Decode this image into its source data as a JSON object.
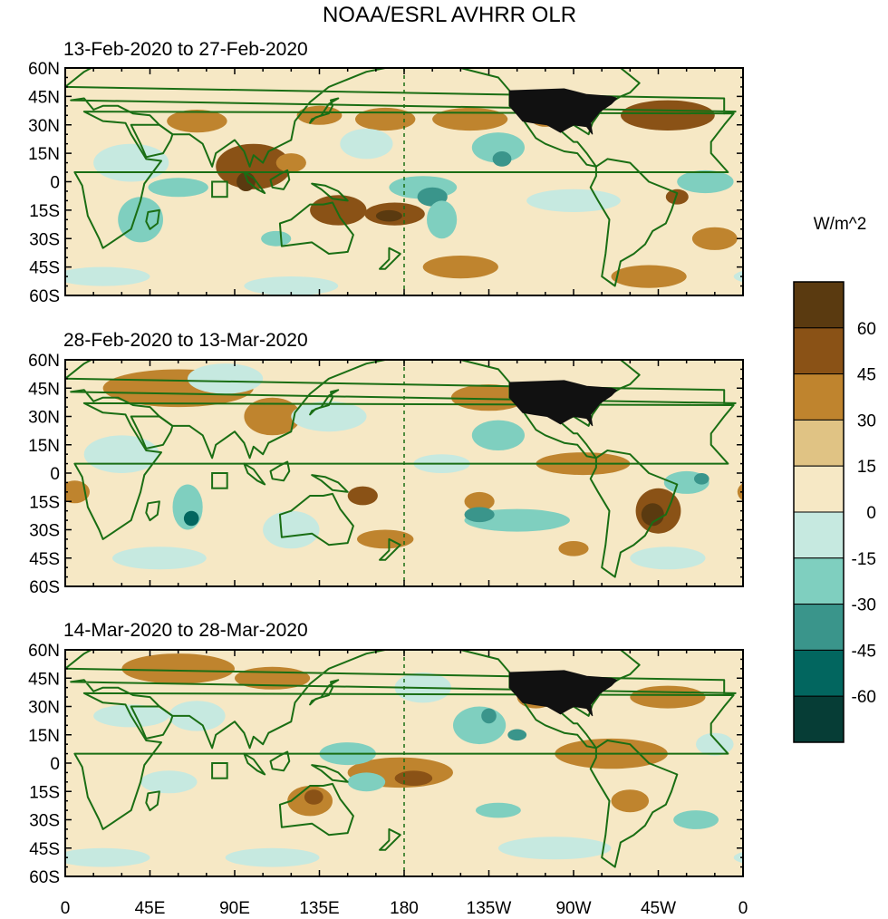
{
  "title": "NOAA/ESRL AVHRR OLR",
  "colorbar": {
    "title": "W/m^2",
    "labels": [
      "60",
      "45",
      "30",
      "15",
      "0",
      "-15",
      "-30",
      "-45",
      "-60"
    ],
    "colors": [
      "#5a3a10",
      "#8a5216",
      "#bf842e",
      "#e0c384",
      "#f6e8c5",
      "#c6e9e0",
      "#7fcfbf",
      "#3a958b",
      "#02665f",
      "#063d36"
    ],
    "color_names": [
      "> 60",
      "45 to 60",
      "30 to 45",
      "15 to 30",
      "0 to 15",
      "-15 to 0",
      "-30 to -15",
      "-45 to -30",
      "-60 to -45",
      "< -60"
    ]
  },
  "axes": {
    "lat_labels": [
      "60N",
      "45N",
      "30N",
      "15N",
      "0",
      "15S",
      "30S",
      "45S",
      "60S"
    ],
    "lon_labels": [
      "0",
      "45E",
      "90E",
      "135E",
      "180",
      "135W",
      "90W",
      "45W",
      "0"
    ],
    "lat_range": [
      -60,
      60
    ],
    "lon_range": [
      0,
      360
    ],
    "dateline_lon": 180
  },
  "panels": [
    {
      "title": "13-Feb-2020 to 27-Feb-2020",
      "anomalies": [
        {
          "lon": 320,
          "lat": 35,
          "rx": 25,
          "ry": 8,
          "level": 3
        },
        {
          "lon": 170,
          "lat": 33,
          "rx": 16,
          "ry": 6,
          "level": 2
        },
        {
          "lon": 215,
          "lat": 33,
          "rx": 20,
          "ry": 6,
          "level": 2
        },
        {
          "lon": 255,
          "lat": 34,
          "rx": 8,
          "ry": 5,
          "level": 2
        },
        {
          "lon": 70,
          "lat": 32,
          "rx": 16,
          "ry": 6,
          "level": 2
        },
        {
          "lon": 135,
          "lat": 35,
          "rx": 12,
          "ry": 5,
          "level": 2
        },
        {
          "lon": 100,
          "lat": 8,
          "rx": 20,
          "ry": 12,
          "level": 3
        },
        {
          "lon": 96,
          "lat": 0,
          "rx": 5,
          "ry": 5,
          "level": 4
        },
        {
          "lon": 120,
          "lat": 10,
          "rx": 8,
          "ry": 5,
          "level": 2
        },
        {
          "lon": 145,
          "lat": -15,
          "rx": 15,
          "ry": 8,
          "level": 3
        },
        {
          "lon": 175,
          "lat": -17,
          "rx": 16,
          "ry": 6,
          "level": 3
        },
        {
          "lon": 172,
          "lat": -18,
          "rx": 7,
          "ry": 3,
          "level": 4
        },
        {
          "lon": 325,
          "lat": -8,
          "rx": 6,
          "ry": 4,
          "level": 3
        },
        {
          "lon": 345,
          "lat": -30,
          "rx": 12,
          "ry": 6,
          "level": 2
        },
        {
          "lon": 210,
          "lat": -45,
          "rx": 20,
          "ry": 6,
          "level": 2
        },
        {
          "lon": 310,
          "lat": -50,
          "rx": 20,
          "ry": 6,
          "level": 2
        },
        {
          "lon": 190,
          "lat": -3,
          "rx": 18,
          "ry": 6,
          "level": -2
        },
        {
          "lon": 195,
          "lat": -8,
          "rx": 8,
          "ry": 5,
          "level": -3
        },
        {
          "lon": 200,
          "lat": -20,
          "rx": 8,
          "ry": 10,
          "level": -2
        },
        {
          "lon": 230,
          "lat": 18,
          "rx": 14,
          "ry": 8,
          "level": -2
        },
        {
          "lon": 232,
          "lat": 12,
          "rx": 5,
          "ry": 4,
          "level": -3
        },
        {
          "lon": 40,
          "lat": -20,
          "rx": 12,
          "ry": 12,
          "level": -2
        },
        {
          "lon": 60,
          "lat": -3,
          "rx": 16,
          "ry": 5,
          "level": -2
        },
        {
          "lon": 160,
          "lat": 20,
          "rx": 14,
          "ry": 8,
          "level": -1
        },
        {
          "lon": 35,
          "lat": 10,
          "rx": 20,
          "ry": 10,
          "level": -1
        },
        {
          "lon": 112,
          "lat": -30,
          "rx": 8,
          "ry": 4,
          "level": -2
        },
        {
          "lon": 340,
          "lat": 0,
          "rx": 15,
          "ry": 6,
          "level": -2
        },
        {
          "lon": 20,
          "lat": -50,
          "rx": 25,
          "ry": 5,
          "level": -1
        },
        {
          "lon": 120,
          "lat": -55,
          "rx": 25,
          "ry": 5,
          "level": -1
        },
        {
          "lon": 270,
          "lat": -10,
          "rx": 25,
          "ry": 6,
          "level": -1
        }
      ]
    },
    {
      "title": "28-Feb-2020 to 13-Mar-2020",
      "anomalies": [
        {
          "lon": 60,
          "lat": 45,
          "rx": 40,
          "ry": 10,
          "level": 2
        },
        {
          "lon": 110,
          "lat": 30,
          "rx": 15,
          "ry": 10,
          "level": 2
        },
        {
          "lon": 225,
          "lat": 40,
          "rx": 20,
          "ry": 7,
          "level": 2
        },
        {
          "lon": 315,
          "lat": -20,
          "rx": 12,
          "ry": 12,
          "level": 3
        },
        {
          "lon": 312,
          "lat": -22,
          "rx": 6,
          "ry": 6,
          "level": 4
        },
        {
          "lon": 158,
          "lat": -12,
          "rx": 8,
          "ry": 5,
          "level": 3
        },
        {
          "lon": 275,
          "lat": 5,
          "rx": 25,
          "ry": 6,
          "level": 2
        },
        {
          "lon": 220,
          "lat": -15,
          "rx": 8,
          "ry": 5,
          "level": 2
        },
        {
          "lon": 270,
          "lat": -40,
          "rx": 8,
          "ry": 4,
          "level": 2
        },
        {
          "lon": 5,
          "lat": -10,
          "rx": 8,
          "ry": 6,
          "level": 2
        },
        {
          "lon": 170,
          "lat": -35,
          "rx": 15,
          "ry": 5,
          "level": 2
        },
        {
          "lon": 65,
          "lat": -18,
          "rx": 8,
          "ry": 12,
          "level": -2
        },
        {
          "lon": 67,
          "lat": -24,
          "rx": 4,
          "ry": 4,
          "level": -4
        },
        {
          "lon": 240,
          "lat": -25,
          "rx": 28,
          "ry": 6,
          "level": -2
        },
        {
          "lon": 220,
          "lat": -22,
          "rx": 8,
          "ry": 4,
          "level": -3
        },
        {
          "lon": 230,
          "lat": 20,
          "rx": 14,
          "ry": 8,
          "level": -2
        },
        {
          "lon": 85,
          "lat": 50,
          "rx": 20,
          "ry": 8,
          "level": -1
        },
        {
          "lon": 140,
          "lat": 30,
          "rx": 20,
          "ry": 8,
          "level": -1
        },
        {
          "lon": 330,
          "lat": -5,
          "rx": 12,
          "ry": 6,
          "level": -2
        },
        {
          "lon": 338,
          "lat": -3,
          "rx": 4,
          "ry": 3,
          "level": -3
        },
        {
          "lon": 120,
          "lat": -30,
          "rx": 15,
          "ry": 10,
          "level": -1
        },
        {
          "lon": 200,
          "lat": 5,
          "rx": 15,
          "ry": 5,
          "level": -1
        },
        {
          "lon": 30,
          "lat": 10,
          "rx": 20,
          "ry": 10,
          "level": -1
        },
        {
          "lon": 50,
          "lat": -45,
          "rx": 25,
          "ry": 6,
          "level": -1
        },
        {
          "lon": 320,
          "lat": -45,
          "rx": 20,
          "ry": 6,
          "level": -1
        }
      ]
    },
    {
      "title": "14-Mar-2020 to 28-Mar-2020",
      "anomalies": [
        {
          "lon": 178,
          "lat": -5,
          "rx": 28,
          "ry": 8,
          "level": 2
        },
        {
          "lon": 185,
          "lat": -8,
          "rx": 10,
          "ry": 4,
          "level": 3
        },
        {
          "lon": 130,
          "lat": -20,
          "rx": 12,
          "ry": 8,
          "level": 2
        },
        {
          "lon": 132,
          "lat": -18,
          "rx": 5,
          "ry": 4,
          "level": 3
        },
        {
          "lon": 290,
          "lat": 5,
          "rx": 30,
          "ry": 8,
          "level": 2
        },
        {
          "lon": 320,
          "lat": 35,
          "rx": 20,
          "ry": 6,
          "level": 2
        },
        {
          "lon": 60,
          "lat": 50,
          "rx": 30,
          "ry": 8,
          "level": 2
        },
        {
          "lon": 250,
          "lat": 35,
          "rx": 10,
          "ry": 6,
          "level": 2
        },
        {
          "lon": 300,
          "lat": -20,
          "rx": 10,
          "ry": 6,
          "level": 2
        },
        {
          "lon": 110,
          "lat": 45,
          "rx": 20,
          "ry": 6,
          "level": 2
        },
        {
          "lon": 220,
          "lat": 20,
          "rx": 14,
          "ry": 10,
          "level": -2
        },
        {
          "lon": 225,
          "lat": 25,
          "rx": 4,
          "ry": 4,
          "level": -3
        },
        {
          "lon": 240,
          "lat": 15,
          "rx": 5,
          "ry": 3,
          "level": -3
        },
        {
          "lon": 150,
          "lat": 5,
          "rx": 15,
          "ry": 6,
          "level": -2
        },
        {
          "lon": 160,
          "lat": -10,
          "rx": 10,
          "ry": 5,
          "level": -2
        },
        {
          "lon": 230,
          "lat": -25,
          "rx": 12,
          "ry": 4,
          "level": -2
        },
        {
          "lon": 335,
          "lat": -30,
          "rx": 12,
          "ry": 5,
          "level": -2
        },
        {
          "lon": 55,
          "lat": -10,
          "rx": 15,
          "ry": 6,
          "level": -1
        },
        {
          "lon": 70,
          "lat": 25,
          "rx": 15,
          "ry": 8,
          "level": -1
        },
        {
          "lon": 35,
          "lat": 25,
          "rx": 20,
          "ry": 6,
          "level": -1
        },
        {
          "lon": 190,
          "lat": 40,
          "rx": 15,
          "ry": 8,
          "level": -1
        },
        {
          "lon": 260,
          "lat": -45,
          "rx": 30,
          "ry": 6,
          "level": -1
        },
        {
          "lon": 20,
          "lat": -50,
          "rx": 25,
          "ry": 5,
          "level": -1
        },
        {
          "lon": 110,
          "lat": -50,
          "rx": 25,
          "ry": 5,
          "level": -1
        },
        {
          "lon": 345,
          "lat": 10,
          "rx": 10,
          "ry": 6,
          "level": -1
        }
      ]
    }
  ]
}
